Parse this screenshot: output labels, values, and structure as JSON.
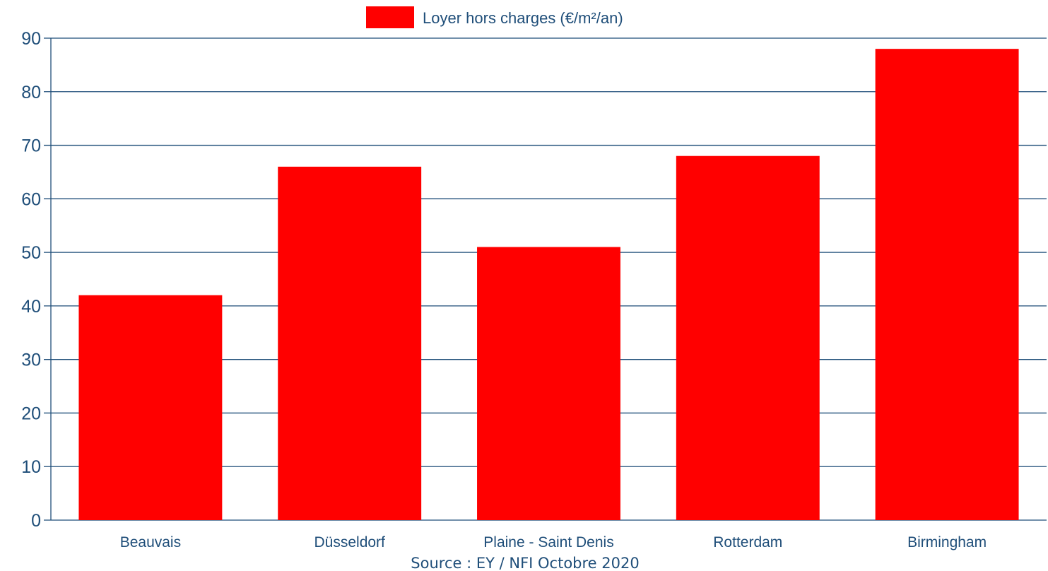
{
  "chart_data": {
    "type": "bar",
    "categories": [
      "Beauvais",
      "Düsseldorf",
      "Plaine - Saint Denis",
      "Rotterdam",
      "Birmingham"
    ],
    "series": [
      {
        "name": "Loyer hors charges (€/m²/an)",
        "color": "#ff0000",
        "values": [
          42,
          66,
          51,
          68,
          88
        ]
      }
    ],
    "title": "",
    "xlabel": "",
    "ylabel": "",
    "ylim": [
      0,
      90
    ],
    "yticks": [
      0,
      10,
      20,
      30,
      40,
      50,
      60,
      70,
      80,
      90
    ],
    "grid": true,
    "legend_position": "top-center",
    "source": "Source : EY / NFI Octobre 2020"
  },
  "colors": {
    "bar": "#ff0000",
    "axis": "#1f4e79",
    "text": "#1f4e79",
    "source_text": "#1f4e79"
  }
}
